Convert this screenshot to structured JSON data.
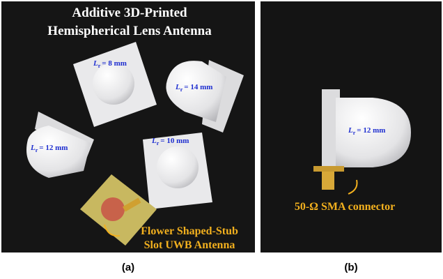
{
  "panel_a": {
    "title_lines": [
      "Additive 3D-Printed",
      "Hemispherical Lens Antenna"
    ],
    "lens_labels": [
      {
        "symbol": "L",
        "subscript": "r",
        "text": "= 8 mm"
      },
      {
        "symbol": "L",
        "subscript": "r",
        "text": "= 14 mm"
      },
      {
        "symbol": "L",
        "subscript": "r",
        "text": "= 12 mm"
      },
      {
        "symbol": "L",
        "subscript": "r",
        "text": "= 10 mm"
      }
    ],
    "antenna_label_lines": [
      "Flower Shaped-Stub",
      "Slot UWB Antenna"
    ],
    "caption": "(a)"
  },
  "panel_b": {
    "lens_label": {
      "symbol": "L",
      "subscript": "r",
      "text": "= 12 mm"
    },
    "connector_label": "50-Ω SMA connector",
    "caption": "(b)"
  }
}
